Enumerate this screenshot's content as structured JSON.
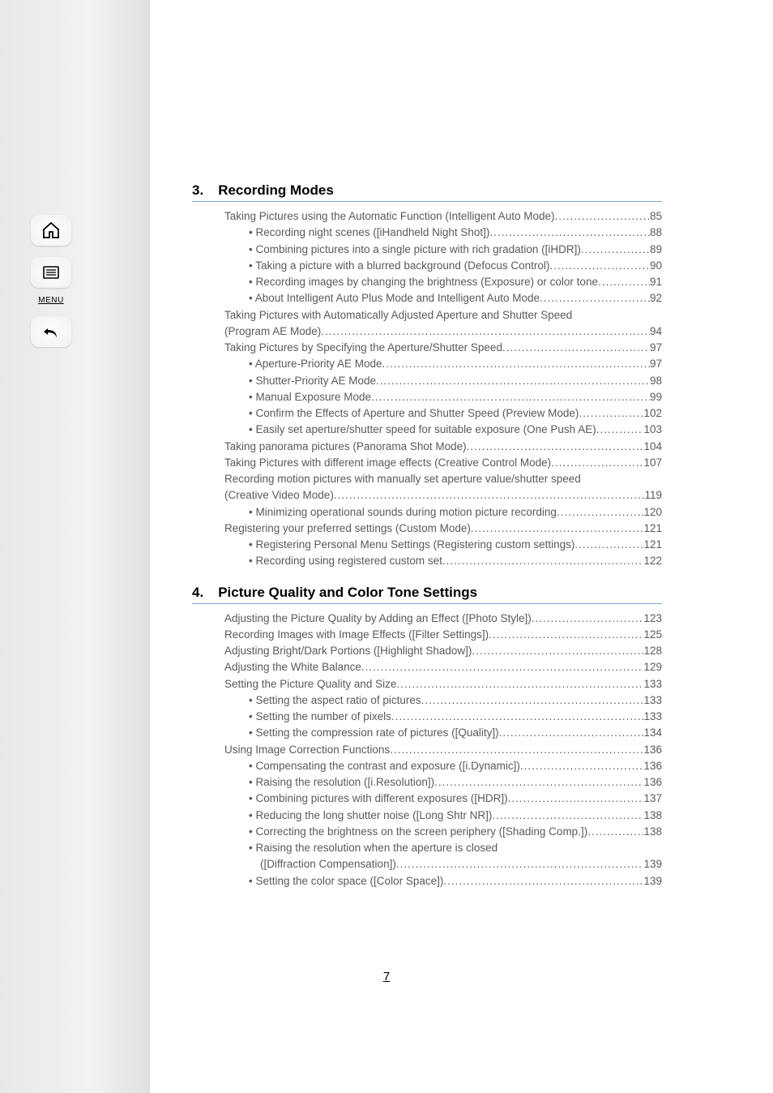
{
  "sidebar": {
    "menu_label": "MENU"
  },
  "sections": [
    {
      "num": "3.",
      "title": "Recording Modes",
      "items": [
        {
          "text": "Taking Pictures using the Automatic Function (Intelligent Auto Mode)",
          "page": "85",
          "level": 0
        },
        {
          "text": "• Recording night scenes ([iHandheld Night Shot]) ",
          "page": "88",
          "level": 1
        },
        {
          "text": "• Combining pictures into a single picture with rich gradation ([iHDR])",
          "page": "89",
          "level": 1
        },
        {
          "text": "• Taking a picture with a blurred background (Defocus Control)",
          "page": "90",
          "level": 1
        },
        {
          "text": "• Recording images by changing the brightness (Exposure) or color tone",
          "page": "91",
          "level": 1
        },
        {
          "text": "• About Intelligent Auto Plus Mode and Intelligent Auto Mode ",
          "page": "92",
          "level": 1
        },
        {
          "text": "Taking Pictures with Automatically Adjusted Aperture and Shutter Speed",
          "level": 0,
          "wrap": true
        },
        {
          "text": "(Program AE Mode)",
          "page": "94",
          "level": 0
        },
        {
          "text": "Taking Pictures by Specifying the Aperture/Shutter Speed",
          "page": "97",
          "level": 0
        },
        {
          "text": "• Aperture-Priority AE Mode ",
          "page": "97",
          "level": 1
        },
        {
          "text": "• Shutter-Priority AE Mode",
          "page": "98",
          "level": 1
        },
        {
          "text": "• Manual Exposure Mode ",
          "page": "99",
          "level": 1
        },
        {
          "text": "• Confirm the Effects of Aperture and Shutter Speed (Preview Mode)",
          "page": "102",
          "level": 1
        },
        {
          "text": "• Easily set aperture/shutter speed for suitable exposure (One Push AE) ",
          "page": "103",
          "level": 1
        },
        {
          "text": "Taking panorama pictures (Panorama Shot Mode)",
          "page": "104",
          "level": 0
        },
        {
          "text": "Taking Pictures with different image effects (Creative Control Mode)",
          "page": "107",
          "level": 0
        },
        {
          "text": "Recording motion pictures with manually set aperture value/shutter speed",
          "level": 0,
          "wrap": true
        },
        {
          "text": "(Creative Video Mode) ",
          "page": "119",
          "level": 0
        },
        {
          "text": "• Minimizing operational sounds during motion picture recording ",
          "page": "120",
          "level": 1
        },
        {
          "text": "Registering your preferred settings (Custom Mode)",
          "page": "121",
          "level": 0
        },
        {
          "text": "• Registering Personal Menu Settings (Registering custom settings) ",
          "page": "121",
          "level": 1
        },
        {
          "text": "• Recording using registered custom set ",
          "page": "122",
          "level": 1
        }
      ]
    },
    {
      "num": "4.",
      "title": "Picture Quality and Color Tone Settings",
      "items": [
        {
          "text": "Adjusting the Picture Quality by Adding an Effect ([Photo Style]) ",
          "page": "123",
          "level": 0
        },
        {
          "text": "Recording Images with Image Effects ([Filter Settings])",
          "page": "125",
          "level": 0
        },
        {
          "text": "Adjusting Bright/Dark Portions ([Highlight Shadow])",
          "page": "128",
          "level": 0
        },
        {
          "text": "Adjusting the White Balance ",
          "page": "129",
          "level": 0
        },
        {
          "text": "Setting the Picture Quality and Size ",
          "page": "133",
          "level": 0
        },
        {
          "text": "• Setting the aspect ratio of pictures ",
          "page": "133",
          "level": 1
        },
        {
          "text": "• Setting the number of pixels",
          "page": "133",
          "level": 1
        },
        {
          "text": "• Setting the compression rate of pictures ([Quality]) ",
          "page": "134",
          "level": 1
        },
        {
          "text": "Using Image Correction Functions",
          "page": "136",
          "level": 0
        },
        {
          "text": "• Compensating the contrast and exposure ([i.Dynamic]) ",
          "page": "136",
          "level": 1
        },
        {
          "text": "• Raising the resolution ([i.Resolution])",
          "page": "136",
          "level": 1
        },
        {
          "text": "• Combining pictures with different exposures ([HDR])",
          "page": "137",
          "level": 1
        },
        {
          "text": "• Reducing the long shutter noise ([Long Shtr NR])",
          "page": "138",
          "level": 1
        },
        {
          "text": "• Correcting the brightness on the screen periphery ([Shading Comp.]) ",
          "page": "138",
          "level": 1
        },
        {
          "text": "• Raising the resolution when the aperture is closed",
          "level": 1,
          "wrap": true
        },
        {
          "text": "([Diffraction Compensation]) ",
          "page": "139",
          "level": 2
        },
        {
          "text": "• Setting the color space ([Color Space])",
          "page": "139",
          "level": 1
        }
      ]
    }
  ],
  "page_number": "7"
}
